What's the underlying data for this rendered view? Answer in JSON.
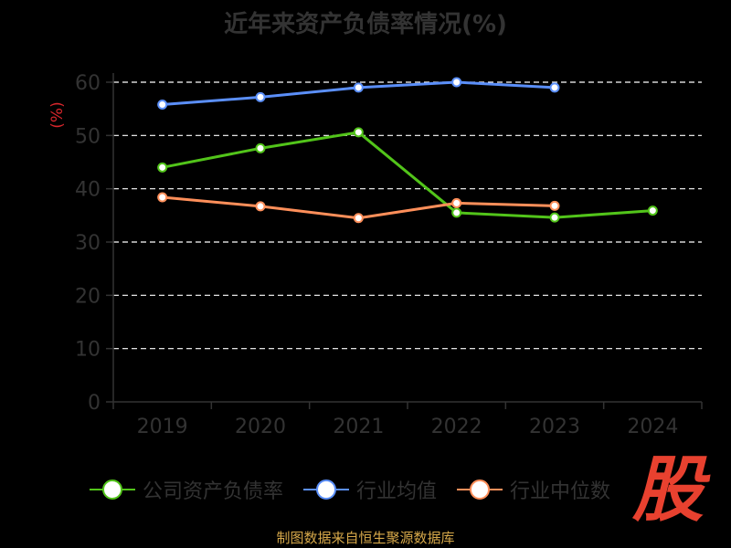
{
  "chart_data": {
    "type": "line",
    "title": "近年来资产负债率情况(%)",
    "ylabel": "(%)",
    "xlabel": "",
    "categories": [
      "2019",
      "2020",
      "2021",
      "2022",
      "2023",
      "2024"
    ],
    "ylim": [
      0,
      60
    ],
    "yticks": [
      "0",
      "10",
      "20",
      "30",
      "40",
      "50",
      "60"
    ],
    "grid": true,
    "legend_position": "bottom",
    "series": [
      {
        "name": "公司资产负债率",
        "color": "#52c41a",
        "values": [
          44.0,
          47.6,
          50.6,
          35.5,
          34.6,
          35.9
        ]
      },
      {
        "name": "行业均值",
        "color": "#5b8ff9",
        "values": [
          55.8,
          57.2,
          59.0,
          60.0,
          59.0,
          null
        ]
      },
      {
        "name": "行业中位数",
        "color": "#ff8f5a",
        "values": [
          38.4,
          36.7,
          34.5,
          37.3,
          36.8,
          null
        ]
      }
    ]
  },
  "source": "制图数据来自恒生聚源数据库",
  "logo_text": "股"
}
